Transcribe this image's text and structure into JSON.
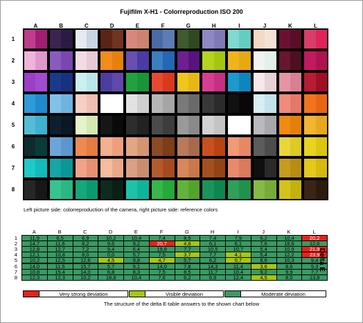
{
  "chart_data": {
    "type": "table",
    "title": "Fujifilm X-H1 - Colorreproduction ISO 200",
    "columns": [
      "A",
      "B",
      "C",
      "D",
      "E",
      "F",
      "G",
      "H",
      "I",
      "J",
      "K",
      "L"
    ],
    "rows": [
      "1",
      "2",
      "3",
      "4",
      "5",
      "6",
      "7",
      "8"
    ],
    "caption": "Left picture side: colorreproduction of the camera, right picture side: reference colors",
    "patches": [
      [
        [
          "#bf3d8c",
          "#a11f73"
        ],
        [
          "#3b2352",
          "#2b1a43"
        ],
        [
          "#e6eaf1",
          "#c9d4e3"
        ],
        [
          "#5b2415",
          "#703420"
        ],
        [
          "#d9877b",
          "#cc8272"
        ],
        [
          "#4a6aa6",
          "#5c7cb3"
        ],
        [
          "#3f5a2e",
          "#2f4a22"
        ],
        [
          "#8e89c4",
          "#7f7ab6"
        ],
        [
          "#7fd9cf",
          "#64cdc2"
        ],
        [
          "#f4d9c4",
          "#f5e2d6"
        ],
        [
          "#6a1131",
          "#5a0d27"
        ],
        [
          "#d93d69",
          "#e0245a"
        ]
      ],
      [
        [
          "#efb3da",
          "#e098cb"
        ],
        [
          "#8a5bbf",
          "#7946b2"
        ],
        [
          "#f2dce4",
          "#e8c9d6"
        ],
        [
          "#f28c1c",
          "#e8800e"
        ],
        [
          "#6a4fb0",
          "#4a3aa5"
        ],
        [
          "#3a7fc0",
          "#2467b5"
        ],
        [
          "#6f2090",
          "#58137f"
        ],
        [
          "#b6d21f",
          "#a4c511"
        ],
        [
          "#f1b31c",
          "#e6a814"
        ],
        [
          "#f2f2f2",
          "#e2f0ea"
        ],
        [
          "#67162d",
          "#4f0e22"
        ],
        [
          "#c21a5f",
          "#b0124f"
        ]
      ],
      [
        [
          "#9a3fc6",
          "#a24ad0"
        ],
        [
          "#1b3a8c",
          "#173280"
        ],
        [
          "#ccefef",
          "#b9e6ea"
        ],
        [
          "#4e3da0",
          "#6048ad"
        ],
        [
          "#22a23f",
          "#1a9438"
        ],
        [
          "#e64a2e",
          "#d93a1f"
        ],
        [
          "#f0c61d",
          "#e7b812"
        ],
        [
          "#d73e93",
          "#c62f82"
        ],
        [
          "#1b9ad0",
          "#0f85bd"
        ],
        [
          "#f7e8ea",
          "#e6d2d8"
        ],
        [
          "#e694a4",
          "#d97f92"
        ],
        [
          "#b81c34",
          "#a10e26"
        ]
      ],
      [
        [
          "#2e9ad6",
          "#1f8bcd"
        ],
        [
          "#82c1e8",
          "#6fb4e0"
        ],
        [
          "#f7cfc4",
          "#f2bfb2"
        ],
        [
          "#ffffff",
          "#ffffff"
        ],
        [
          "#e2e2e2",
          "#cfcfcf"
        ],
        [
          "#b6b6b6",
          "#a6a6a6"
        ],
        [
          "#7a7a7a",
          "#6a6a6a"
        ],
        [
          "#383838",
          "#2b2b2b"
        ],
        [
          "#111111",
          "#080808"
        ],
        [
          "#d7eef3",
          "#c2e3ec"
        ],
        [
          "#f08a7c",
          "#e67868"
        ],
        [
          "#f2731f",
          "#e86514"
        ]
      ],
      [
        [
          "#56bcd6",
          "#3fb0cd"
        ],
        [
          "#0e2030",
          "#0a1824"
        ],
        [
          "#e6f2c9",
          "#d4e8b0"
        ],
        [
          "#161616",
          "#0a0a0a"
        ],
        [
          "#2d2d2d",
          "#222222"
        ],
        [
          "#4a4a4a",
          "#3d3d3d"
        ],
        [
          "#9a9a9a",
          "#8a8a8a"
        ],
        [
          "#d2d2d2",
          "#c4c4c4"
        ],
        [
          "#ffffff",
          "#ffffff"
        ],
        [
          "#b9b9be",
          "#a7a7ad"
        ],
        [
          "#f28a12",
          "#e57f0a"
        ],
        [
          "#f1b532",
          "#e7a71f"
        ]
      ],
      [
        [
          "#0e2c2e",
          "#0b3a3a"
        ],
        [
          "#6ea5d8",
          "#5b96cf"
        ],
        [
          "#ec8a52",
          "#e57c40"
        ],
        [
          "#f5b08d",
          "#ee9f7a"
        ],
        [
          "#e2a684",
          "#d69473"
        ],
        [
          "#8c4a23",
          "#7d3d19"
        ],
        [
          "#b97a5a",
          "#a86a4b"
        ],
        [
          "#c8501e",
          "#b84313"
        ],
        [
          "#f19a74",
          "#e88763"
        ],
        [
          "#5c5c5c",
          "#4c4c4c"
        ],
        [
          "#ead63a",
          "#dfca22"
        ],
        [
          "#e8d41e",
          "#dbc50f"
        ]
      ],
      [
        [
          "#1fc9c9",
          "#10bcbc"
        ],
        [
          "#16a6a6",
          "#0d9696"
        ],
        [
          "#f2a288",
          "#e88f76"
        ],
        [
          "#f5bc9d",
          "#eba98b"
        ],
        [
          "#d9a083",
          "#c98e72"
        ],
        [
          "#b55b2b",
          "#a44c20"
        ],
        [
          "#d9875b",
          "#c9784c"
        ],
        [
          "#a5511f",
          "#944414"
        ],
        [
          "#e88a6a",
          "#d97a5a"
        ],
        [
          "#0f0f0f",
          "#2a2a2a"
        ],
        [
          "#c79b1e",
          "#b88d12"
        ],
        [
          "#e6c81b",
          "#d6b90f"
        ]
      ],
      [
        [
          "#262626",
          "#171717"
        ],
        [
          "#38c490",
          "#2cb684"
        ],
        [
          "#14a87c",
          "#0b9a6f"
        ],
        [
          "#0f2a1e",
          "#0a2016"
        ],
        [
          "#1ec2a8",
          "#10b49a"
        ],
        [
          "#37b64a",
          "#26a83b"
        ],
        [
          "#62b33c",
          "#52a42e"
        ],
        [
          "#19945a",
          "#0e864d"
        ],
        [
          "#2ea05a",
          "#20924c"
        ],
        [
          "#86ba48",
          "#76ab3a"
        ],
        [
          "#d4c21c",
          "#c4b110"
        ],
        [
          "#3a2416",
          "#2c1a0f"
        ]
      ]
    ],
    "delta_e": [
      [
        "11,9",
        "6,5",
        "6,9",
        "10,2",
        "10,4",
        "7,4",
        "8,5",
        "7,4",
        "7,9",
        "6,2",
        "10,4",
        "20,2"
      ],
      [
        "14,7",
        "11,6",
        "8,2",
        "9,6",
        "9,2",
        "20,7",
        "4,8",
        "6,1",
        "6,1",
        "7,6",
        "18,6",
        "12,6"
      ],
      [
        "12,8",
        "12,7",
        "7,2",
        "9,4",
        "6,4",
        "19,8",
        "7,7",
        "10,5",
        "10,7",
        "5,4",
        "10,9",
        "21,9"
      ],
      [
        "12,1",
        "10,8",
        "8,0",
        "0,0",
        "5,7",
        "7,5",
        "3,7",
        "7,7",
        "4,1",
        "5,4",
        "12,2",
        "23,9"
      ],
      [
        "10,2",
        "12,5",
        "12,6",
        "4,5",
        "9,8",
        "4,7",
        "5,7",
        "6,2",
        "0,7",
        "8,6",
        "10,3",
        "9,4"
      ],
      [
        "14,0",
        "11,5",
        "15,7",
        "5,7",
        "9,1",
        "14,0",
        "7,8",
        "14,3",
        "11,4",
        "3,6",
        "8,6",
        "9,3"
      ],
      [
        "10,8",
        "15,4",
        "14,0",
        "6,8",
        "8,3",
        "7,5",
        "8,5",
        "11,7",
        "10,4",
        "9,2",
        "9,9",
        "7,7"
      ],
      [
        "12,3",
        "12,3",
        "10,2",
        "18,8",
        "10,4",
        "7,6",
        "6,2",
        "6,9",
        "12,4",
        "4,5",
        "8,0",
        "13,8"
      ]
    ],
    "delta_e_class": [
      [
        "m",
        "m",
        "m",
        "m",
        "m",
        "m",
        "m",
        "m",
        "m",
        "m",
        "m",
        "s"
      ],
      [
        "m",
        "m",
        "m",
        "m",
        "m",
        "s",
        "v",
        "m",
        "m",
        "m",
        "m",
        "m"
      ],
      [
        "m",
        "m",
        "m",
        "m",
        "m",
        "m",
        "m",
        "m",
        "m",
        "m",
        "m",
        "s"
      ],
      [
        "m",
        "m",
        "m",
        "m",
        "m",
        "m",
        "v",
        "m",
        "v",
        "m",
        "m",
        "s"
      ],
      [
        "m",
        "m",
        "m",
        "v",
        "m",
        "v",
        "m",
        "m",
        "v",
        "m",
        "m",
        "m"
      ],
      [
        "m",
        "m",
        "m",
        "m",
        "m",
        "m",
        "m",
        "m",
        "m",
        "v",
        "m",
        "m"
      ],
      [
        "m",
        "m",
        "m",
        "m",
        "m",
        "m",
        "m",
        "m",
        "m",
        "m",
        "m",
        "m"
      ],
      [
        "m",
        "m",
        "m",
        "m",
        "m",
        "m",
        "m",
        "m",
        "m",
        "v",
        "m",
        "m"
      ]
    ],
    "delta_e_label": "Delta E",
    "legend": [
      {
        "label": "Very strong deviation",
        "color": "#e8211b"
      },
      {
        "label": "Visible deviation",
        "color": "#a5c617"
      },
      {
        "label": "Moderate deviation",
        "color": "#3a9a63"
      }
    ],
    "caption2": "The structure of the delta E-table answers to the shown chart below"
  }
}
